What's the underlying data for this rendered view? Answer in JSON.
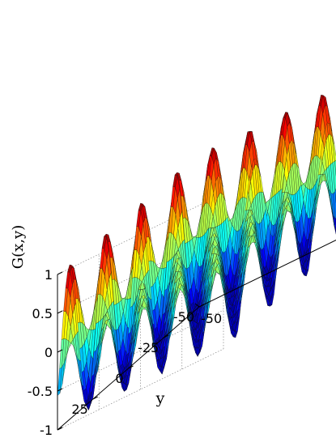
{
  "chart_data": {
    "type": "surface",
    "title": "",
    "xlabel": "",
    "ylabel": "y",
    "zlabel": "G(x,y)",
    "xlim": [
      -50,
      50
    ],
    "ylim": [
      -50,
      50
    ],
    "zlim": [
      -1,
      1
    ],
    "z_ticks": [
      {
        "value": 1,
        "label": "1"
      },
      {
        "value": 0.5,
        "label": "0.5"
      },
      {
        "value": 0,
        "label": "0"
      },
      {
        "value": -0.5,
        "label": "-0.5"
      },
      {
        "value": -1,
        "label": "-1"
      }
    ],
    "y_ticks": [
      {
        "value": 50,
        "label": "50"
      },
      {
        "value": 25,
        "label": "25"
      },
      {
        "value": 0,
        "label": "0"
      },
      {
        "value": -25,
        "label": "-25"
      },
      {
        "value": -50,
        "label": "-50"
      }
    ],
    "x_ticks": [
      {
        "value": -50,
        "label": "-50"
      }
    ],
    "surface": {
      "x_range": [
        -50,
        50
      ],
      "y_range": [
        -50,
        50
      ],
      "period_x": 22,
      "period_y": 25,
      "amplitude": 1
    },
    "colormap": "jet",
    "grid": true,
    "legend": "none"
  }
}
